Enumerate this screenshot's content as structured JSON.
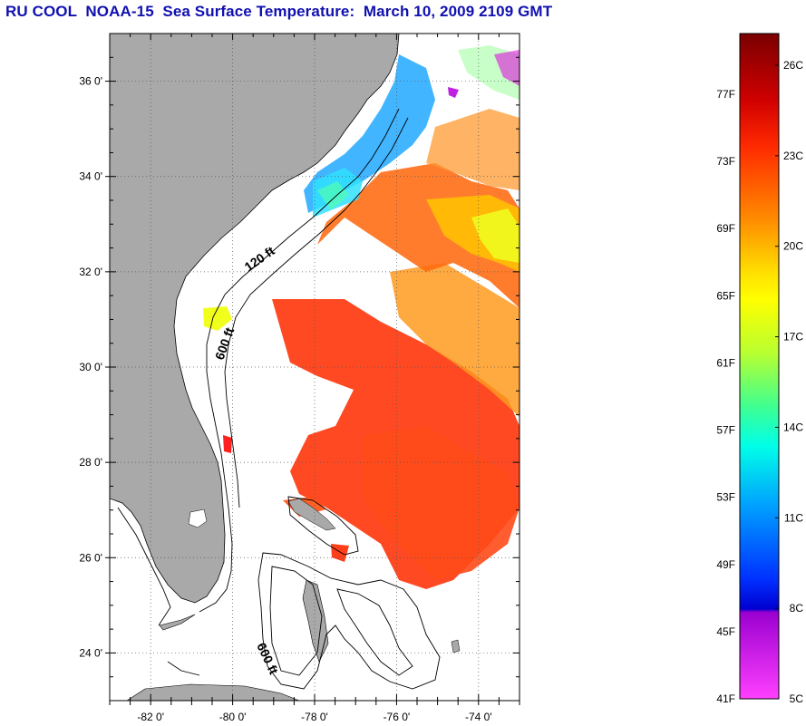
{
  "title": "RU COOL  NOAA-15  Sea Surface Temperature:  March 10, 2009 2109 GMT",
  "map": {
    "lon_range": [
      -83,
      -73
    ],
    "lat_range": [
      23,
      37
    ],
    "lat_ticks": [
      {
        "value": 36,
        "label": "36 0'"
      },
      {
        "value": 34,
        "label": "34 0'"
      },
      {
        "value": 32,
        "label": "32 0'"
      },
      {
        "value": 30,
        "label": "30 0'"
      },
      {
        "value": 28,
        "label": "28 0'"
      },
      {
        "value": 26,
        "label": "26 0'"
      },
      {
        "value": 24,
        "label": "24 0'"
      }
    ],
    "lon_ticks": [
      {
        "value": -82,
        "label": "-82 0'"
      },
      {
        "value": -80,
        "label": "-80 0'"
      },
      {
        "value": -78,
        "label": "-78 0'"
      },
      {
        "value": -76,
        "label": "-76 0'"
      },
      {
        "value": -74,
        "label": "-74 0'"
      }
    ],
    "contour_labels": {
      "shelf_120": "120 ft",
      "shelf_600": "600 ft",
      "bahamas_600": "600 ft"
    },
    "colors": {
      "land": "#a9a9a9",
      "frame": "#000000",
      "grid": "#555555"
    }
  },
  "colorbar": {
    "fahrenheit": [
      "77F",
      "73F",
      "69F",
      "65F",
      "61F",
      "57F",
      "53F",
      "49F",
      "45F",
      "41F"
    ],
    "celsius": [
      "26C",
      "23C",
      "20C",
      "17C",
      "14C",
      "11C",
      "8C",
      "5C"
    ],
    "gradient": [
      "#7a0000",
      "#d00000",
      "#ff2a00",
      "#ff8c00",
      "#ffe000",
      "#ffff00",
      "#b8ff30",
      "#40ff90",
      "#00ffe8",
      "#00a0ff",
      "#0030ff",
      "#0000d0",
      "#9a00d0",
      "#ff40ff"
    ]
  }
}
